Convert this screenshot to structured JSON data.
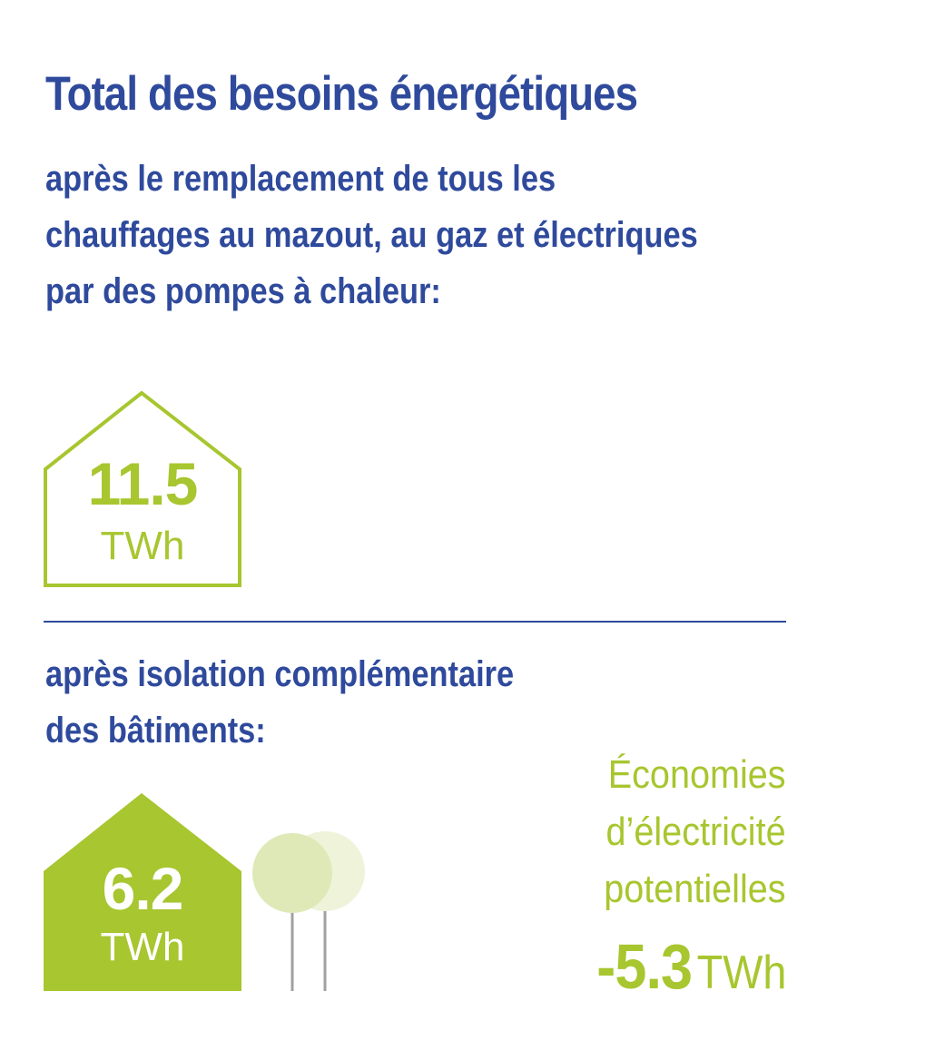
{
  "heading": {
    "title": "Total des besoins énergétiques",
    "subtitle_lines": [
      "après le remplacement de tous les",
      "chauffages au mazout, au gaz et électriques",
      "par des pompes à chaleur:"
    ]
  },
  "house_before": {
    "value": "11.5",
    "unit": "TWh"
  },
  "section_after": {
    "lines": [
      "après isolation complémentaire",
      "des bâtiments:"
    ]
  },
  "house_after": {
    "value": "6.2",
    "unit": "TWh"
  },
  "savings": {
    "label_lines": [
      "Économies",
      "d’électricité",
      "potentielles"
    ],
    "value": "-5.3",
    "unit": "TWh"
  },
  "colors": {
    "blue": "#2f4a9c",
    "green": "#a7c62f",
    "light_green": "#dfe9b8",
    "pale_green": "#eef3da",
    "gray": "#a0a0a0"
  },
  "icons": [
    "house-outline-icon",
    "house-filled-icon",
    "trees-icon"
  ]
}
